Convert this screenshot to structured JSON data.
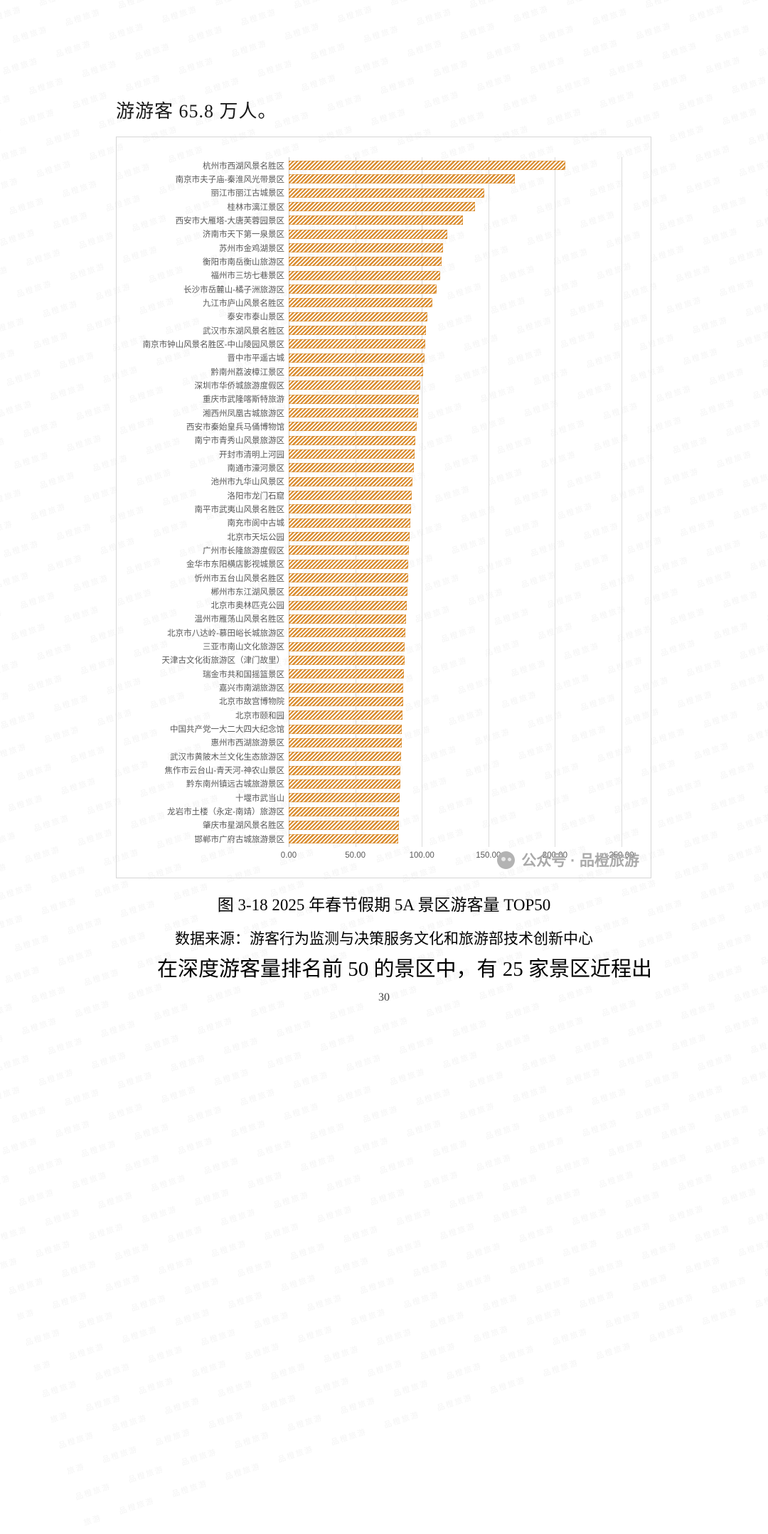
{
  "page": {
    "intro_text": "游游客 65.8 万人。",
    "caption": "图 3-18 2025 年春节假期 5A 景区游客量 TOP50",
    "source": "数据来源：游客行为监测与决策服务文化和旅游部技术创新中心",
    "paragraph": "在深度游客量排名前 50 的景区中，有 25 家景区近程出",
    "page_number": "30"
  },
  "watermark": {
    "background_text": "品橙旅游",
    "brand_text": "公众号 · 品橙旅游"
  },
  "chart_data": {
    "type": "bar",
    "orientation": "horizontal",
    "title": "2025年春节假期5A景区游客量TOP50",
    "xlabel": "",
    "ylabel": "",
    "xlim": [
      0,
      250
    ],
    "x_ticks": [
      0,
      50,
      100,
      150,
      200,
      250
    ],
    "x_tick_labels": [
      "0.00",
      "50.00",
      "100.00",
      "150.00",
      "200.00",
      "250.00"
    ],
    "grid": true,
    "legend": "none",
    "bar_color": "#D98C2F",
    "bar_pattern": "diagonal-stripes",
    "categories": [
      "杭州市西湖风景名胜区",
      "南京市夫子庙-秦淮风光带景区",
      "丽江市丽江古城景区",
      "桂林市漓江景区",
      "西安市大雁塔-大唐芙蓉园景区",
      "济南市天下第一泉景区",
      "苏州市金鸡湖景区",
      "衡阳市南岳衡山旅游区",
      "福州市三坊七巷景区",
      "长沙市岳麓山-橘子洲旅游区",
      "九江市庐山风景名胜区",
      "泰安市泰山景区",
      "武汉市东湖风景名胜区",
      "南京市钟山风景名胜区-中山陵园风景区",
      "晋中市平遥古城",
      "黔南州荔波樟江景区",
      "深圳市华侨城旅游度假区",
      "重庆市武隆喀斯特旅游",
      "湘西州凤凰古城旅游区",
      "西安市秦始皇兵马俑博物馆",
      "南宁市青秀山风景旅游区",
      "开封市清明上河园",
      "南通市濠河景区",
      "池州市九华山风景区",
      "洛阳市龙门石窟",
      "南平市武夷山风景名胜区",
      "南充市阆中古城",
      "北京市天坛公园",
      "广州市长隆旅游度假区",
      "金华市东阳横店影视城景区",
      "忻州市五台山风景名胜区",
      "郴州市东江湖风景区",
      "北京市奥林匹克公园",
      "温州市雁荡山风景名胜区",
      "北京市八达岭-慕田峪长城旅游区",
      "三亚市南山文化旅游区",
      "天津古文化街旅游区（津门故里）",
      "瑞金市共和国摇篮景区",
      "嘉兴市南湖旅游区",
      "北京市故宫博物院",
      "北京市颐和园",
      "中国共产党一大二大四大纪念馆",
      "惠州市西湖旅游景区",
      "武汉市黄陂木兰文化生态旅游区",
      "焦作市云台山-青天河-神农山景区",
      "黔东南州镇远古城旅游景区",
      "十堰市武当山",
      "龙岩市土楼（永定-南靖）旅游区",
      "肇庆市星湖风景名胜区",
      "邯郸市广府古城旅游景区"
    ],
    "values": [
      208,
      170,
      147,
      140,
      131,
      119,
      116,
      115,
      114,
      111,
      108,
      104,
      103,
      102.5,
      102,
      101,
      99,
      98,
      97,
      96,
      95,
      94.5,
      94,
      93,
      92.5,
      92,
      91.5,
      91,
      90.5,
      90,
      89.5,
      89,
      88.5,
      88,
      87.5,
      87,
      87,
      86.5,
      86,
      86,
      85.5,
      85,
      85,
      84.5,
      84,
      84,
      83.5,
      83,
      83,
      82.5
    ]
  }
}
